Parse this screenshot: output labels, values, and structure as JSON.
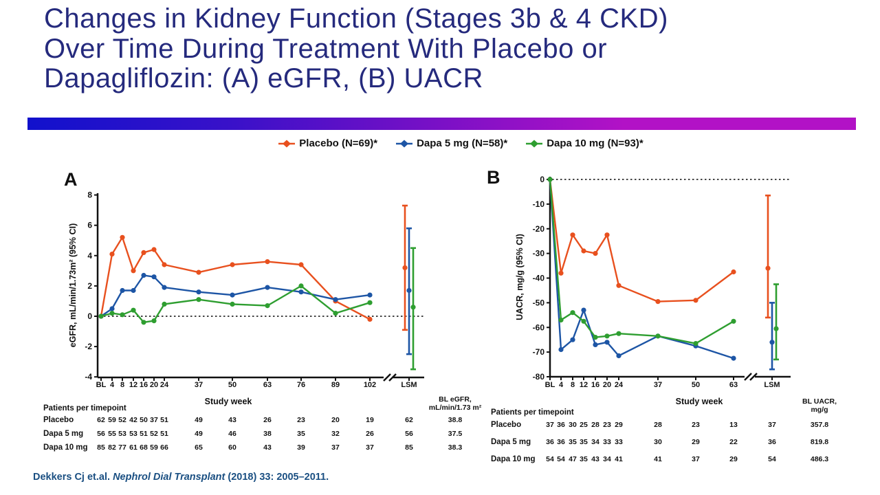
{
  "title": {
    "lines": [
      "Changes in Kidney Function (Stages 3b & 4 CKD)",
      "Over Time During Treatment With Placebo or",
      "Dapagliflozin: (A) eGFR, (B) UACR"
    ]
  },
  "legend": {
    "items": [
      {
        "label": "Placebo (N=69)*",
        "color": "#e8501e"
      },
      {
        "label": "Dapa 5 mg (N=58)*",
        "color": "#1d55a5"
      },
      {
        "label": "Dapa 10 mg (N=93)*",
        "color": "#2e9e30"
      }
    ]
  },
  "panels": {
    "a_label": "A",
    "b_label": "B"
  },
  "chart_data": [
    {
      "id": "chart-egfr",
      "type": "line",
      "panel": "A",
      "ylabel": "eGFR, mL/min/1.73m² (95% CI)",
      "xlabel": "Study week",
      "categories": [
        "BL",
        "4",
        "8",
        "12",
        "16",
        "20",
        "24",
        "37",
        "50",
        "63",
        "76",
        "89",
        "102"
      ],
      "lsm_label": "LSM",
      "ylim": [
        -4,
        8
      ],
      "yticks": [
        8,
        6,
        4,
        2,
        0,
        -2,
        -4
      ],
      "zero_line": true,
      "series": [
        {
          "name": "Placebo (N=69)*",
          "color": "#e8501e",
          "values": [
            0,
            4.1,
            5.2,
            3.0,
            4.2,
            4.4,
            3.4,
            2.9,
            3.4,
            3.6,
            3.4,
            1.0,
            -0.2
          ],
          "lsm": {
            "mean": 3.2,
            "lo": -0.9,
            "hi": 7.3
          }
        },
        {
          "name": "Dapa 5 mg (N=58)*",
          "color": "#1d55a5",
          "values": [
            0,
            0.5,
            1.7,
            1.7,
            2.7,
            2.6,
            1.9,
            1.6,
            1.4,
            1.9,
            1.6,
            1.1,
            1.4
          ],
          "lsm": {
            "mean": 1.7,
            "lo": -2.5,
            "hi": 5.8
          }
        },
        {
          "name": "Dapa 10 mg (N=93)*",
          "color": "#2e9e30",
          "values": [
            0,
            0.2,
            0.1,
            0.4,
            -0.4,
            -0.3,
            0.8,
            1.1,
            0.8,
            0.7,
            2.0,
            0.2,
            0.9
          ],
          "lsm": {
            "mean": 0.6,
            "lo": -3.5,
            "hi": 4.5
          }
        }
      ]
    },
    {
      "id": "chart-uacr",
      "type": "line",
      "panel": "B",
      "ylabel": "UACR, mg/g (95% CI)",
      "xlabel": "Study week",
      "categories": [
        "BL",
        "4",
        "8",
        "12",
        "16",
        "20",
        "24",
        "37",
        "50",
        "63"
      ],
      "lsm_label": "LSM",
      "ylim": [
        -80,
        0
      ],
      "yticks": [
        0,
        -10,
        -20,
        -30,
        -40,
        -50,
        -60,
        -70,
        -80
      ],
      "zero_line": true,
      "series": [
        {
          "name": "Placebo (N=69)*",
          "color": "#e8501e",
          "values": [
            0,
            -38,
            -22.5,
            -29,
            -30,
            -22.5,
            -43,
            -49.5,
            -49,
            -37.5
          ],
          "lsm": {
            "mean": -36,
            "lo": -56,
            "hi": -6.5
          }
        },
        {
          "name": "Dapa 5 mg (N=58)*",
          "color": "#1d55a5",
          "values": [
            0,
            -69,
            -65,
            -53,
            -67,
            -66,
            -71.5,
            -63.5,
            -67.5,
            -72.5
          ],
          "lsm": {
            "mean": -66,
            "lo": -77,
            "hi": -50
          }
        },
        {
          "name": "Dapa 10 mg (N=93)*",
          "color": "#2e9e30",
          "values": [
            0,
            -57,
            -54,
            -57.5,
            -64,
            -63.5,
            -62.5,
            -63.5,
            -66.5,
            -57.5
          ],
          "lsm": {
            "mean": -60.5,
            "lo": -73,
            "hi": -42.5
          }
        }
      ]
    }
  ],
  "tables": [
    {
      "title": "Patients per timepoint",
      "columns": [
        "BL",
        "4",
        "8",
        "12",
        "16",
        "20",
        "24",
        "37",
        "50",
        "63",
        "76",
        "89",
        "102",
        "LSM"
      ],
      "extra_header": [
        "BL eGFR,",
        "mL/min/1.73 m²"
      ],
      "rows": [
        {
          "label": "Placebo",
          "counts": [
            62,
            59,
            52,
            42,
            50,
            37,
            51,
            49,
            43,
            26,
            23,
            20,
            19,
            62
          ],
          "bl_value": "38.8"
        },
        {
          "label": "Dapa 5 mg",
          "counts": [
            56,
            55,
            53,
            53,
            51,
            52,
            51,
            49,
            46,
            38,
            35,
            32,
            26,
            56
          ],
          "bl_value": "37.5"
        },
        {
          "label": "Dapa 10 mg",
          "counts": [
            85,
            82,
            77,
            61,
            68,
            59,
            66,
            65,
            60,
            43,
            39,
            37,
            37,
            85
          ],
          "bl_value": "38.3"
        }
      ]
    },
    {
      "title": "Patients per timepoint",
      "columns": [
        "BL",
        "4",
        "8",
        "12",
        "16",
        "20",
        "24",
        "37",
        "50",
        "63",
        "LSM"
      ],
      "extra_header": [
        "BL UACR,",
        "mg/g"
      ],
      "rows": [
        {
          "label": "Placebo",
          "counts": [
            37,
            36,
            30,
            25,
            28,
            23,
            29,
            28,
            23,
            13,
            37
          ],
          "bl_value": "357.8"
        },
        {
          "label": "Dapa 5 mg",
          "counts": [
            36,
            36,
            35,
            35,
            34,
            33,
            33,
            30,
            29,
            22,
            36
          ],
          "bl_value": "819.8"
        },
        {
          "label": "Dapa 10 mg",
          "counts": [
            54,
            54,
            47,
            35,
            43,
            34,
            41,
            41,
            37,
            29,
            54
          ],
          "bl_value": "486.3"
        }
      ]
    }
  ],
  "citation": {
    "authors": "Dekkers Cj et.al. ",
    "journal": "Nephrol Dial Transplant ",
    "rest": "(2018) 33: 2005–2011."
  }
}
